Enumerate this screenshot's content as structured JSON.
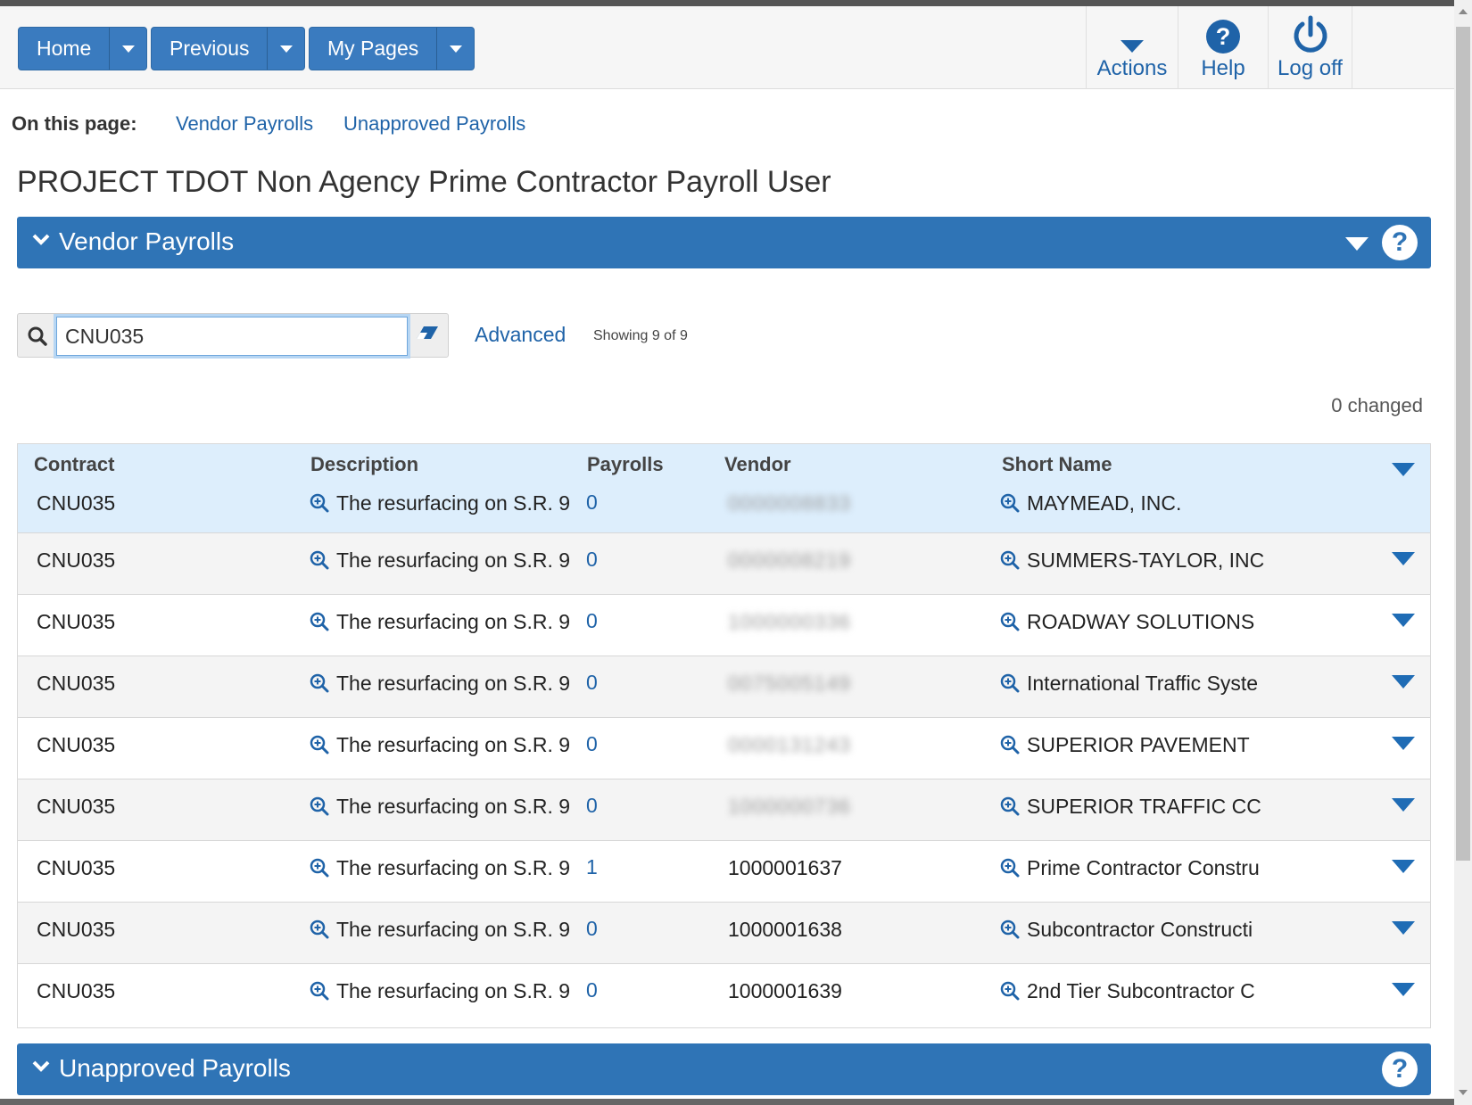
{
  "nav": {
    "home": "Home",
    "previous": "Previous",
    "my_pages": "My Pages"
  },
  "top_actions": {
    "actions": "Actions",
    "help": "Help",
    "logoff": "Log off"
  },
  "on_this_page": {
    "label": "On this page:",
    "links": [
      "Vendor Payrolls",
      "Unapproved Payrolls"
    ]
  },
  "page_title": "PROJECT TDOT Non Agency Prime Contractor Payroll User",
  "vendor_section": {
    "title": "Vendor Payrolls",
    "help": "?",
    "search_value": "CNU035",
    "advanced": "Advanced",
    "showing": "Showing 9 of 9",
    "changed": "0 changed",
    "columns": [
      "Contract",
      "Description",
      "Payrolls",
      "Vendor",
      "Short Name"
    ],
    "rows": [
      {
        "contract": "CNU035",
        "description": "The resurfacing on S.R. 9",
        "payrolls": "0",
        "vendor": "0000008833",
        "short_name": "MAYMEAD, INC."
      },
      {
        "contract": "CNU035",
        "description": "The resurfacing on S.R. 9",
        "payrolls": "0",
        "vendor": "0000008219",
        "short_name": "SUMMERS-TAYLOR, INC"
      },
      {
        "contract": "CNU035",
        "description": "The resurfacing on S.R. 9",
        "payrolls": "0",
        "vendor": "1000000336",
        "short_name": "ROADWAY SOLUTIONS"
      },
      {
        "contract": "CNU035",
        "description": "The resurfacing on S.R. 9",
        "payrolls": "0",
        "vendor": "0075005149",
        "short_name": "International Traffic Syste"
      },
      {
        "contract": "CNU035",
        "description": "The resurfacing on S.R. 9",
        "payrolls": "0",
        "vendor": "0000131243",
        "short_name": "SUPERIOR PAVEMENT"
      },
      {
        "contract": "CNU035",
        "description": "The resurfacing on S.R. 9",
        "payrolls": "0",
        "vendor": "1000000736",
        "short_name": "SUPERIOR TRAFFIC CC"
      },
      {
        "contract": "CNU035",
        "description": "The resurfacing on S.R. 9",
        "payrolls": "1",
        "vendor": "1000001637",
        "short_name": "Prime Contractor Constru"
      },
      {
        "contract": "CNU035",
        "description": "The resurfacing on S.R. 9",
        "payrolls": "0",
        "vendor": "1000001638",
        "short_name": "Subcontractor Constructi"
      },
      {
        "contract": "CNU035",
        "description": "The resurfacing on S.R. 9",
        "payrolls": "0",
        "vendor": "1000001639",
        "short_name": "2nd Tier Subcontractor C"
      }
    ]
  },
  "unapproved_section": {
    "title": "Unapproved Payrolls",
    "help": "?"
  },
  "colors": {
    "accent": "#2f74b6",
    "link": "#1f63a8",
    "header_row": "#ddeefc"
  }
}
